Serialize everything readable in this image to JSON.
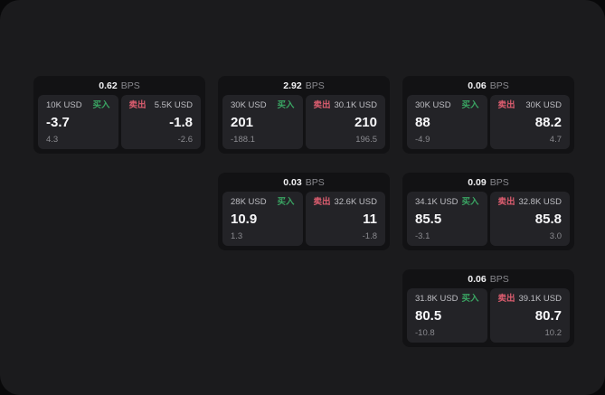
{
  "colors": {
    "page_bg": "#09090a",
    "window_bg": "#1b1b1d",
    "card_bg": "#121214",
    "panel_bg": "#232327",
    "buy_green": "#3aa563",
    "sell_red": "#dc5d6f"
  },
  "labels": {
    "bps_suffix": "BPS",
    "buy": "买入",
    "sell": "卖出"
  },
  "cards": [
    {
      "bps": "0.62",
      "row": 1,
      "col": 1,
      "buy": {
        "amount": "10K USD",
        "price": "-3.7",
        "delta": "4.3"
      },
      "sell": {
        "amount": "5.5K USD",
        "price": "-1.8",
        "delta": "-2.6"
      }
    },
    {
      "bps": "2.92",
      "row": 1,
      "col": 2,
      "buy": {
        "amount": "30K USD",
        "price": "201",
        "delta": "-188.1"
      },
      "sell": {
        "amount": "30.1K USD",
        "price": "210",
        "delta": "196.5"
      }
    },
    {
      "bps": "0.06",
      "row": 1,
      "col": 3,
      "buy": {
        "amount": "30K USD",
        "price": "88",
        "delta": "-4.9"
      },
      "sell": {
        "amount": "30K USD",
        "price": "88.2",
        "delta": "4.7"
      }
    },
    {
      "bps": "0.03",
      "row": 2,
      "col": 2,
      "buy": {
        "amount": "28K USD",
        "price": "10.9",
        "delta": "1.3"
      },
      "sell": {
        "amount": "32.6K USD",
        "price": "11",
        "delta": "-1.8"
      }
    },
    {
      "bps": "0.09",
      "row": 2,
      "col": 3,
      "buy": {
        "amount": "34.1K USD",
        "price": "85.5",
        "delta": "-3.1"
      },
      "sell": {
        "amount": "32.8K USD",
        "price": "85.8",
        "delta": "3.0"
      }
    },
    {
      "bps": "0.06",
      "row": 3,
      "col": 3,
      "buy": {
        "amount": "31.8K USD",
        "price": "80.5",
        "delta": "-10.8"
      },
      "sell": {
        "amount": "39.1K USD",
        "price": "80.7",
        "delta": "10.2"
      }
    }
  ]
}
